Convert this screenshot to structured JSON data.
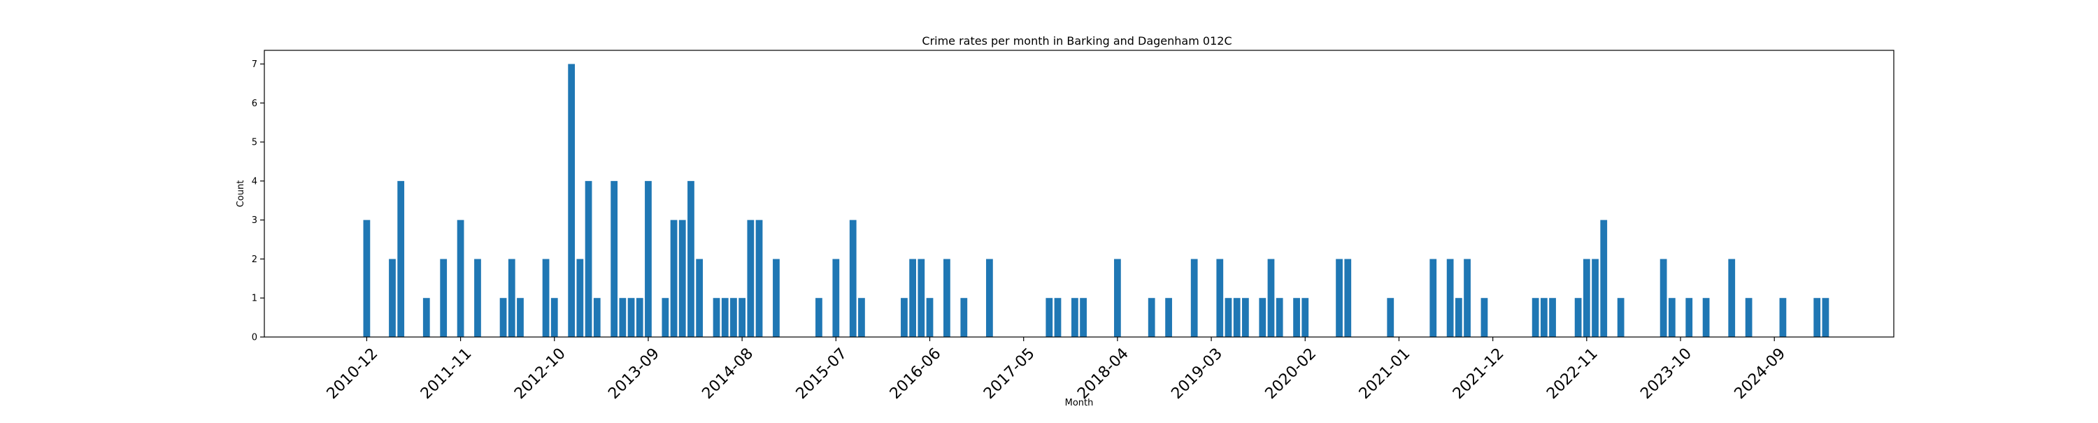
{
  "chart_data": {
    "type": "bar",
    "title": "Crime rates per month in Barking and Dagenham 012C",
    "xlabel": "Month",
    "ylabel": "Count",
    "ylim": [
      0,
      7.35
    ],
    "yticks": [
      0,
      1,
      2,
      3,
      4,
      5,
      6,
      7
    ],
    "xlim": [
      "2009-12",
      "2025-11"
    ],
    "xticks": [
      "2010-12",
      "2011-11",
      "2012-10",
      "2013-09",
      "2014-08",
      "2015-07",
      "2016-06",
      "2017-05",
      "2018-04",
      "2019-03",
      "2020-02",
      "2021-01",
      "2021-12",
      "2022-11",
      "2023-10",
      "2024-09"
    ],
    "bar_color": "#1f77b4",
    "grid": false,
    "x": [
      "2010-12",
      "2011-03",
      "2011-04",
      "2011-07",
      "2011-09",
      "2011-11",
      "2012-01",
      "2012-04",
      "2012-05",
      "2012-06",
      "2012-09",
      "2012-10",
      "2012-12",
      "2013-01",
      "2013-02",
      "2013-03",
      "2013-05",
      "2013-06",
      "2013-07",
      "2013-08",
      "2013-09",
      "2013-11",
      "2013-12",
      "2014-01",
      "2014-02",
      "2014-03",
      "2014-05",
      "2014-06",
      "2014-07",
      "2014-08",
      "2014-09",
      "2014-10",
      "2014-12",
      "2015-05",
      "2015-07",
      "2015-09",
      "2015-10",
      "2016-03",
      "2016-04",
      "2016-05",
      "2016-06",
      "2016-08",
      "2016-10",
      "2017-01",
      "2017-08",
      "2017-09",
      "2017-11",
      "2017-12",
      "2018-04",
      "2018-08",
      "2018-10",
      "2019-01",
      "2019-04",
      "2019-05",
      "2019-06",
      "2019-07",
      "2019-09",
      "2019-10",
      "2019-11",
      "2020-01",
      "2020-02",
      "2020-06",
      "2020-07",
      "2020-12",
      "2021-05",
      "2021-07",
      "2021-08",
      "2021-09",
      "2021-11",
      "2022-05",
      "2022-06",
      "2022-07",
      "2022-10",
      "2022-11",
      "2022-12",
      "2023-01",
      "2023-03",
      "2023-08",
      "2023-09",
      "2023-11",
      "2024-01",
      "2024-04",
      "2024-06",
      "2024-10",
      "2025-02",
      "2025-03"
    ],
    "values": [
      3,
      2,
      4,
      1,
      2,
      3,
      2,
      1,
      2,
      1,
      2,
      1,
      7,
      2,
      4,
      1,
      4,
      1,
      1,
      1,
      4,
      1,
      3,
      3,
      4,
      2,
      1,
      1,
      1,
      1,
      3,
      3,
      2,
      1,
      2,
      3,
      1,
      1,
      2,
      2,
      1,
      2,
      1,
      2,
      1,
      1,
      1,
      1,
      2,
      1,
      1,
      2,
      2,
      1,
      1,
      1,
      1,
      2,
      1,
      1,
      1,
      2,
      2,
      1,
      2,
      2,
      1,
      2,
      1,
      1,
      1,
      1,
      1,
      2,
      2,
      3,
      1,
      2,
      1,
      1,
      1,
      2,
      1,
      1,
      1,
      1
    ]
  }
}
